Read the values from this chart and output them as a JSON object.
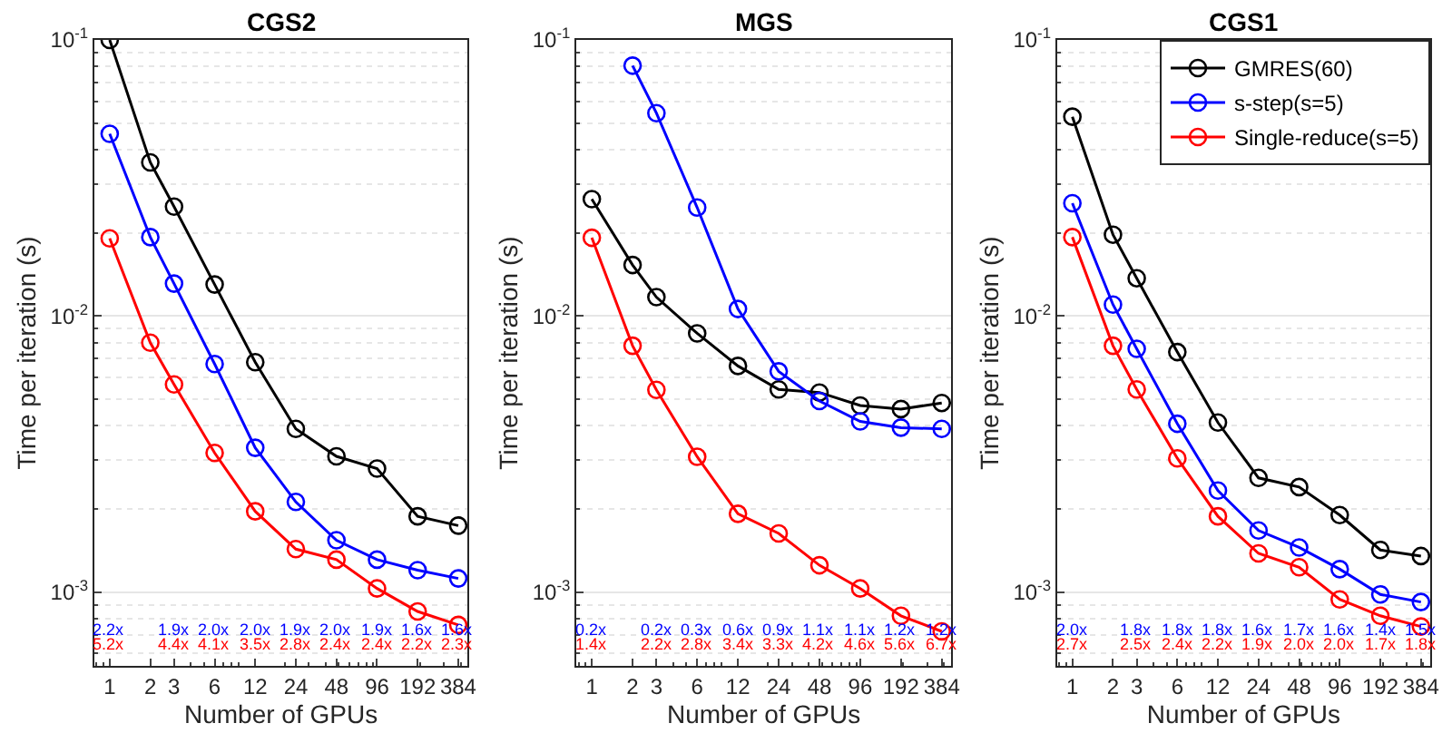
{
  "chart_data": [
    {
      "type": "line",
      "title": "CGS2",
      "xlabel": "Number of GPUs",
      "ylabel": "Time per iteration (s)",
      "log": "xy",
      "grid": "y",
      "marker": "circle",
      "line_style": "solid",
      "x": [
        1,
        2,
        3,
        6,
        12,
        24,
        48,
        96,
        192,
        384
      ],
      "xlim": [
        0.77,
        450
      ],
      "xticks": [
        1,
        2,
        3,
        6,
        12,
        24,
        48,
        96,
        192,
        384
      ],
      "ylim": [
        0.00054,
        0.1
      ],
      "yticks": [
        {
          "value": 0.001,
          "label": "10$^{-3}$"
        },
        {
          "value": 0.01,
          "label": "10$^{-2}$"
        },
        {
          "value": 0.1,
          "label": "10$^{-1}$"
        }
      ],
      "series": [
        {
          "color": "#000000",
          "values": [
            0.1,
            0.036,
            0.0249,
            0.013,
            0.0068,
            0.0039,
            0.0031,
            0.0028,
            0.00188,
            0.00174
          ]
        },
        {
          "color": "#0000ff",
          "values": [
            0.0457,
            0.0193,
            0.0131,
            0.0067,
            0.00333,
            0.00212,
            0.00154,
            0.00131,
            0.0012,
            0.00112
          ]
        },
        {
          "color": "#ff0000",
          "values": [
            0.0191,
            0.008,
            0.00565,
            0.00319,
            0.00196,
            0.00143,
            0.00131,
            0.00103,
            0.00085,
            0.00076
          ]
        }
      ],
      "annotations": [
        "2.2x",
        "1.9x",
        "2.0x",
        "2.0x",
        "1.9x",
        "2.0x",
        "1.9x",
        "1.6x",
        "1.6x",
        "5.2x",
        "4.4x",
        "4.1x",
        "3.5x",
        "2.8x",
        "2.4x",
        "2.4x",
        "2.2x",
        "2.3x"
      ]
    },
    {
      "type": "line",
      "title": "MGS",
      "xlabel": "Number of GPUs",
      "ylabel": "Time per iteration (s)",
      "log": "xy",
      "grid": "y",
      "marker": "circle",
      "line_style": "solid",
      "x": [
        1,
        2,
        3,
        6,
        12,
        24,
        48,
        96,
        192,
        384
      ],
      "xlim": [
        0.77,
        450
      ],
      "xticks": [
        1,
        2,
        3,
        6,
        12,
        24,
        48,
        96,
        192,
        384
      ],
      "ylim": [
        0.00054,
        0.1
      ],
      "yticks": [
        {
          "value": 0.001,
          "label": "10$^{-3}$"
        },
        {
          "value": 0.01,
          "label": "10$^{-2}$"
        },
        {
          "value": 0.1,
          "label": "10$^{-1}$"
        }
      ],
      "series": [
        {
          "color": "#000000",
          "values": [
            0.0265,
            0.0153,
            0.0117,
            0.00865,
            0.00659,
            0.00542,
            0.00528,
            0.00474,
            0.0046,
            0.00484
          ]
        },
        {
          "color": "#0000ff",
          "values": [
            null,
            0.0807,
            0.0543,
            0.0247,
            0.0106,
            0.0063,
            0.00492,
            0.00415,
            0.00394,
            0.0039
          ]
        },
        {
          "color": "#ff0000",
          "values": [
            0.0192,
            0.0078,
            0.0054,
            0.00309,
            0.00192,
            0.00163,
            0.00125,
            0.00103,
            0.00082,
            0.00072
          ]
        }
      ],
      "annotations": [
        "0.2x",
        "0.2x",
        "0.3x",
        "0.6x",
        "0.9x",
        "1.1x",
        "1.1x",
        "1.2x",
        "1.2x",
        "1.4x",
        "2.2x",
        "2.8x",
        "3.4x",
        "3.3x",
        "4.2x",
        "4.6x",
        "5.6x",
        "6.7x"
      ]
    },
    {
      "type": "line",
      "title": "CGS1",
      "xlabel": "Number of GPUs",
      "ylabel": "Time per iteration (s)",
      "log": "xy",
      "grid": "y",
      "marker": "circle",
      "line_style": "solid",
      "legend": "top right",
      "x": [
        1,
        2,
        3,
        6,
        12,
        24,
        48,
        96,
        192,
        384
      ],
      "xlim": [
        0.77,
        450
      ],
      "xticks": [
        1,
        2,
        3,
        6,
        12,
        24,
        48,
        96,
        192,
        384
      ],
      "ylim": [
        0.00054,
        0.1
      ],
      "yticks": [
        {
          "value": 0.001,
          "label": "10$^{-3}$"
        },
        {
          "value": 0.01,
          "label": "10$^{-2}$"
        },
        {
          "value": 0.1,
          "label": "10$^{-1}$"
        }
      ],
      "series": [
        {
          "name": "GMRES(60)",
          "color": "#000000",
          "values": [
            0.0527,
            0.0197,
            0.0137,
            0.0074,
            0.00411,
            0.00259,
            0.0024,
            0.0019,
            0.00142,
            0.00135
          ]
        },
        {
          "name": "s-step(s=5)",
          "color": "#0000ff",
          "values": [
            0.0256,
            0.011,
            0.0076,
            0.00407,
            0.00233,
            0.00167,
            0.00145,
            0.00121,
            0.00098,
            0.00092
          ]
        },
        {
          "name": "Single-reduce(s=5)",
          "color": "#ff0000",
          "values": [
            0.0193,
            0.0078,
            0.00542,
            0.00305,
            0.00188,
            0.00138,
            0.00123,
            0.00094,
            0.00082,
            0.00075
          ]
        }
      ],
      "annotations": [
        "2.0x",
        "1.8x",
        "1.8x",
        "1.8x",
        "1.6x",
        "1.7x",
        "1.6x",
        "1.4x",
        "1.5x",
        "2.7x",
        "2.5x",
        "2.4x",
        "2.2x",
        "1.9x",
        "2.0x",
        "2.0x",
        "1.7x",
        "1.8x"
      ]
    }
  ]
}
